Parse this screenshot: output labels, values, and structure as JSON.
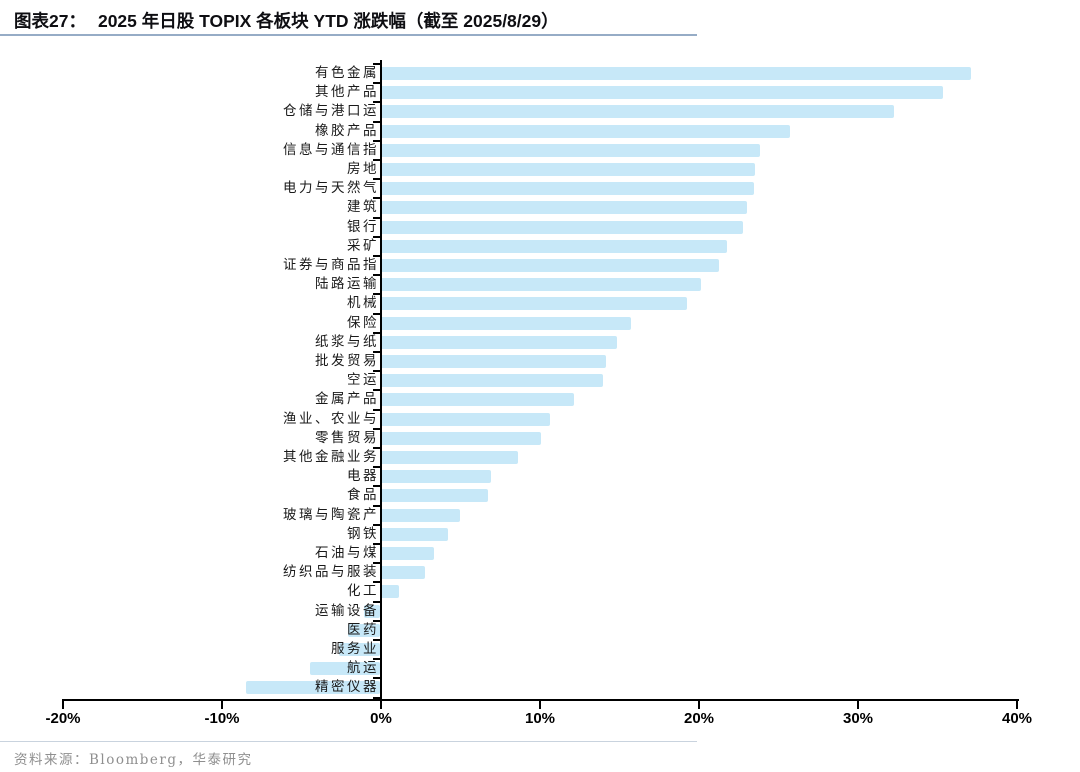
{
  "header": {
    "figure_label": "图表27：",
    "figure_title": "2025 年日股 TOPIX 各板块 YTD 涨跌幅（截至 2025/8/29）"
  },
  "chart_data": {
    "type": "bar",
    "orientation": "horizontal",
    "title": "2025 年日股 TOPIX 各板块 YTD 涨跌幅（截至 2025/8/29）",
    "unit": "%",
    "xlim": [
      -20,
      40
    ],
    "x_tick_values": [
      -20,
      -10,
      0,
      10,
      20,
      30,
      40
    ],
    "x_tick_labels": [
      "-20%",
      "-10%",
      "0%",
      "10%",
      "20%",
      "30%",
      "40%"
    ],
    "grid": false,
    "bar_color": "#C7E8F8",
    "categories": [
      "有色金属",
      "其他产品",
      "仓储与港口运",
      "橡胶产品",
      "信息与通信指",
      "房地",
      "电力与天然气",
      "建筑",
      "银行",
      "采矿",
      "证券与商品指",
      "陆路运输",
      "机械",
      "保险",
      "纸浆与纸",
      "批发贸易",
      "空运",
      "金属产品",
      "渔业、农业与",
      "零售贸易",
      "其他金融业务",
      "电器",
      "食品",
      "玻璃与陶瓷产",
      "钢铁",
      "石油与煤",
      "纺织品与服装",
      "化工",
      "运输设备",
      "医药",
      "服务业",
      "航运",
      "精密仪器"
    ],
    "values": [
      37.2,
      35.4,
      32.3,
      25.8,
      23.9,
      23.6,
      23.5,
      23.1,
      22.8,
      21.8,
      21.3,
      20.2,
      19.3,
      15.8,
      14.9,
      14.2,
      14.0,
      12.2,
      10.7,
      10.1,
      8.7,
      7.0,
      6.8,
      5.0,
      4.3,
      3.4,
      2.8,
      1.2,
      -1.0,
      -2.0,
      -2.6,
      -4.4,
      -8.4
    ]
  },
  "footer": {
    "source": "资料来源：Bloomberg，华泰研究"
  }
}
